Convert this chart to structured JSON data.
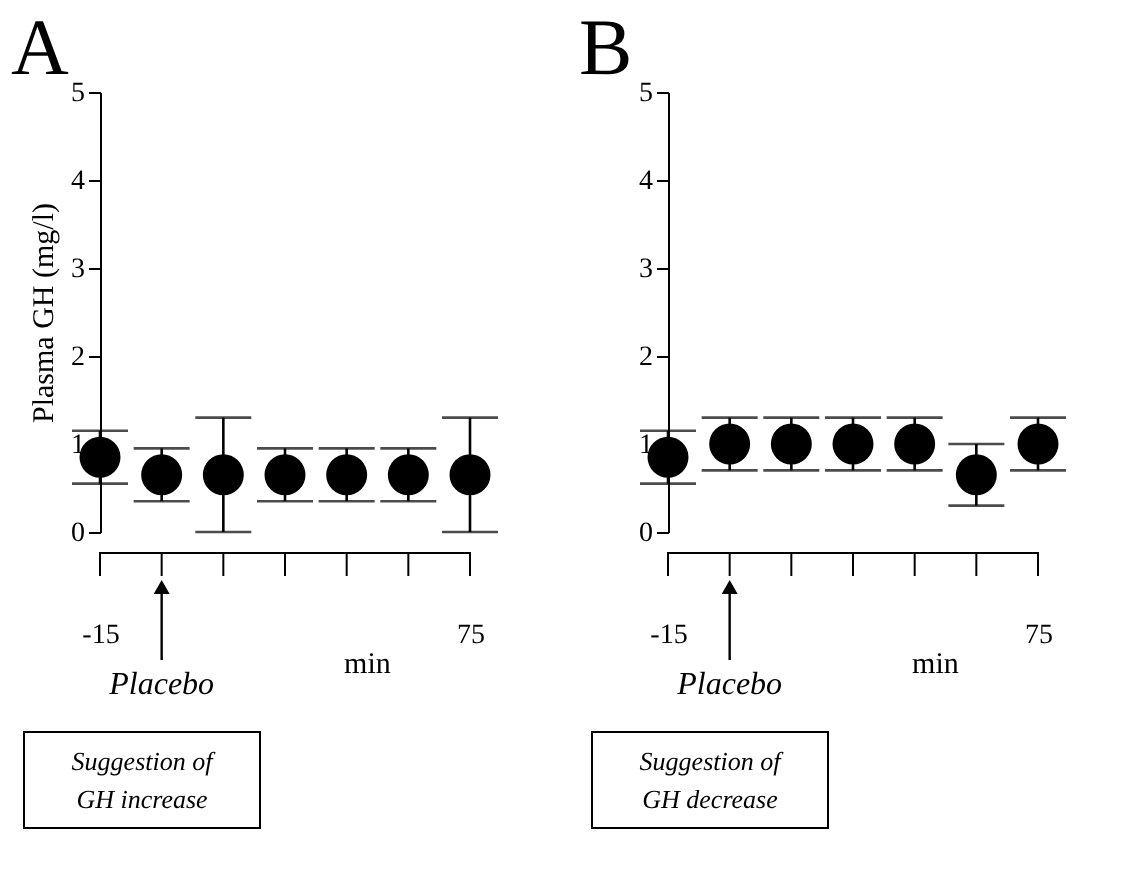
{
  "chart_data": [
    {
      "type": "scatter",
      "title": "A",
      "ylabel": "Plasma GH (mg/l)",
      "xlabel": "min",
      "marker": "circle",
      "color": "#000000",
      "x": [
        -15,
        0,
        15,
        30,
        45,
        60,
        75
      ],
      "values": [
        0.85,
        0.65,
        0.65,
        0.65,
        0.65,
        0.65,
        0.65
      ],
      "errors": [
        0.3,
        0.3,
        0.65,
        0.3,
        0.3,
        0.3,
        0.65
      ],
      "xlim": [
        -15,
        75
      ],
      "xticks": [
        -15,
        {
          "value": 0,
          "label": null
        },
        {
          "value": 15,
          "label": null
        },
        {
          "value": 30,
          "label": null
        },
        {
          "value": 45,
          "label": null
        },
        {
          "value": 60,
          "label": null
        },
        75
      ],
      "ylim": [
        0,
        5
      ],
      "yticks": [
        0,
        1,
        2,
        3,
        4,
        5
      ],
      "grid": false,
      "annotations": [
        "Placebo",
        "Suggestion of\nGH increase"
      ]
    },
    {
      "type": "scatter",
      "title": "B",
      "xlabel": "min",
      "marker": "circle",
      "color": "#000000",
      "x": [
        -15,
        0,
        15,
        30,
        45,
        60,
        75
      ],
      "values": [
        0.85,
        1.0,
        1.0,
        1.0,
        1.0,
        0.65,
        1.0
      ],
      "errors": [
        0.3,
        0.3,
        0.3,
        0.3,
        0.3,
        0.35,
        0.3
      ],
      "xlim": [
        -15,
        75
      ],
      "xticks": [
        -15,
        {
          "value": 0,
          "label": null
        },
        {
          "value": 15,
          "label": null
        },
        {
          "value": 30,
          "label": null
        },
        {
          "value": 45,
          "label": null
        },
        {
          "value": 60,
          "label": null
        },
        75
      ],
      "ylim": [
        0,
        5
      ],
      "yticks": [
        0,
        1,
        2,
        3,
        4,
        5
      ],
      "grid": false,
      "annotations": [
        "Placebo",
        "Suggestion of\nGH decrease"
      ]
    }
  ]
}
